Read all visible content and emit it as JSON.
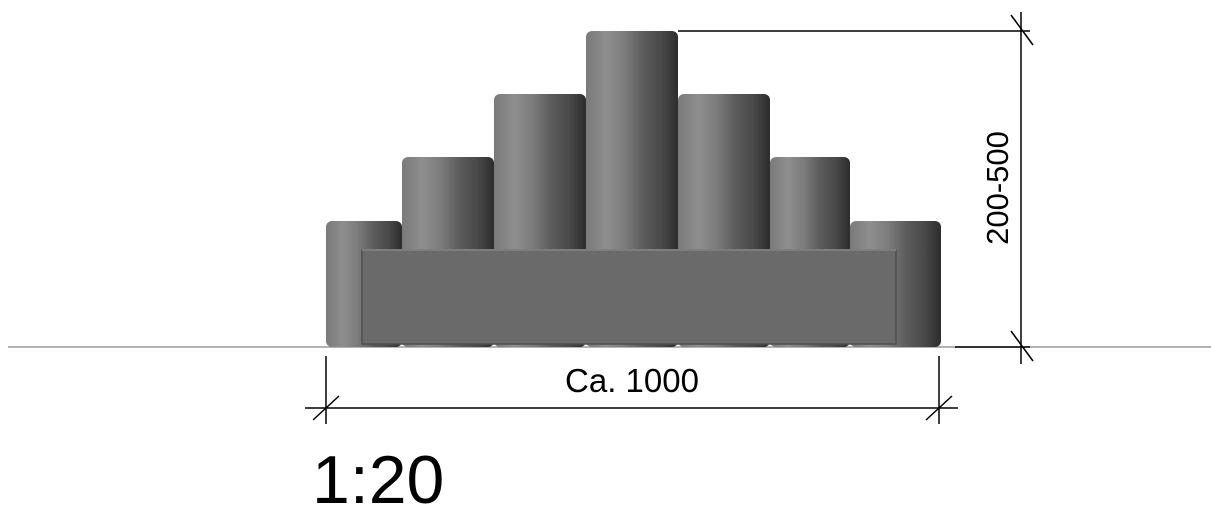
{
  "drawing": {
    "width_label": "Ca. 1000",
    "height_label": "200-500",
    "scale_label": "1:20"
  },
  "colors": {
    "line": "#000000",
    "ground": "#9a9a9a",
    "bollard_light": "#8c8c8c",
    "bollard_mid": "#6f6f6f",
    "bollard_dark": "#4a4a4a",
    "bollard_darkest": "#2e2e2e",
    "base_block": "#6a6a6a"
  }
}
